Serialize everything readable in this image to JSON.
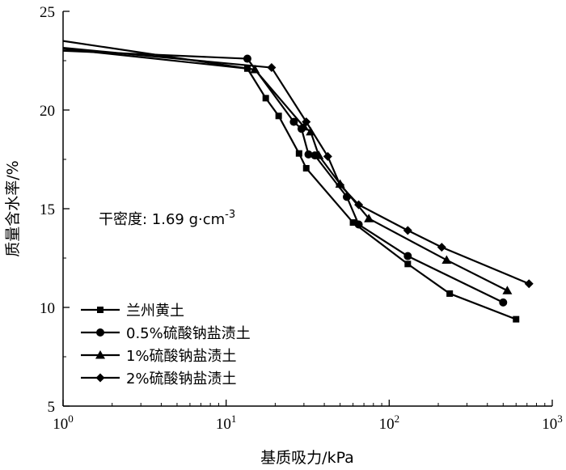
{
  "chart_data": {
    "type": "line",
    "xscale": "log",
    "xlabel": "基质吸力/kPa",
    "ylabel": "质量含水率/%",
    "xlim": [
      1,
      1000
    ],
    "ylim": [
      5,
      25
    ],
    "xticks": [
      {
        "value": 1,
        "base": "10",
        "exp": "0"
      },
      {
        "value": 10,
        "base": "10",
        "exp": "1"
      },
      {
        "value": 100,
        "base": "10",
        "exp": "2"
      },
      {
        "value": 1000,
        "base": "10",
        "exp": "3"
      }
    ],
    "yticks": [
      5,
      10,
      15,
      20,
      25
    ],
    "grid": false,
    "legend": "bottom-left",
    "annotation": {
      "text_main": "干密度: 1.69 g·cm",
      "text_sup": "-3"
    },
    "series": [
      {
        "name": "兰州黄土",
        "marker": "square",
        "x": [
          1,
          13.5,
          17.5,
          21,
          28,
          31,
          60,
          130,
          235,
          600
        ],
        "y": [
          23.1,
          22.1,
          20.6,
          19.7,
          17.8,
          17.05,
          14.3,
          12.2,
          10.7,
          9.4
        ]
      },
      {
        "name": "0.5%硫酸钠盐渍土",
        "marker": "circle",
        "x": [
          1,
          13.5,
          26,
          29,
          32,
          35,
          55,
          65,
          130,
          500
        ],
        "y": [
          23.0,
          22.6,
          19.4,
          19.05,
          17.75,
          17.7,
          15.6,
          14.2,
          12.6,
          10.25
        ]
      },
      {
        "name": "1%硫酸钠盐渍土",
        "marker": "triangle",
        "x": [
          1,
          15,
          30,
          33,
          37,
          50,
          75,
          225,
          530
        ],
        "y": [
          23.5,
          22.05,
          19.15,
          18.9,
          17.7,
          16.25,
          14.5,
          12.4,
          10.85
        ]
      },
      {
        "name": "2%硫酸钠盐渍土",
        "marker": "diamond",
        "x": [
          1,
          19,
          31,
          42,
          50,
          65,
          130,
          210,
          720
        ],
        "y": [
          23.15,
          22.15,
          19.4,
          17.65,
          16.2,
          15.2,
          13.9,
          13.05,
          11.2
        ]
      }
    ]
  }
}
